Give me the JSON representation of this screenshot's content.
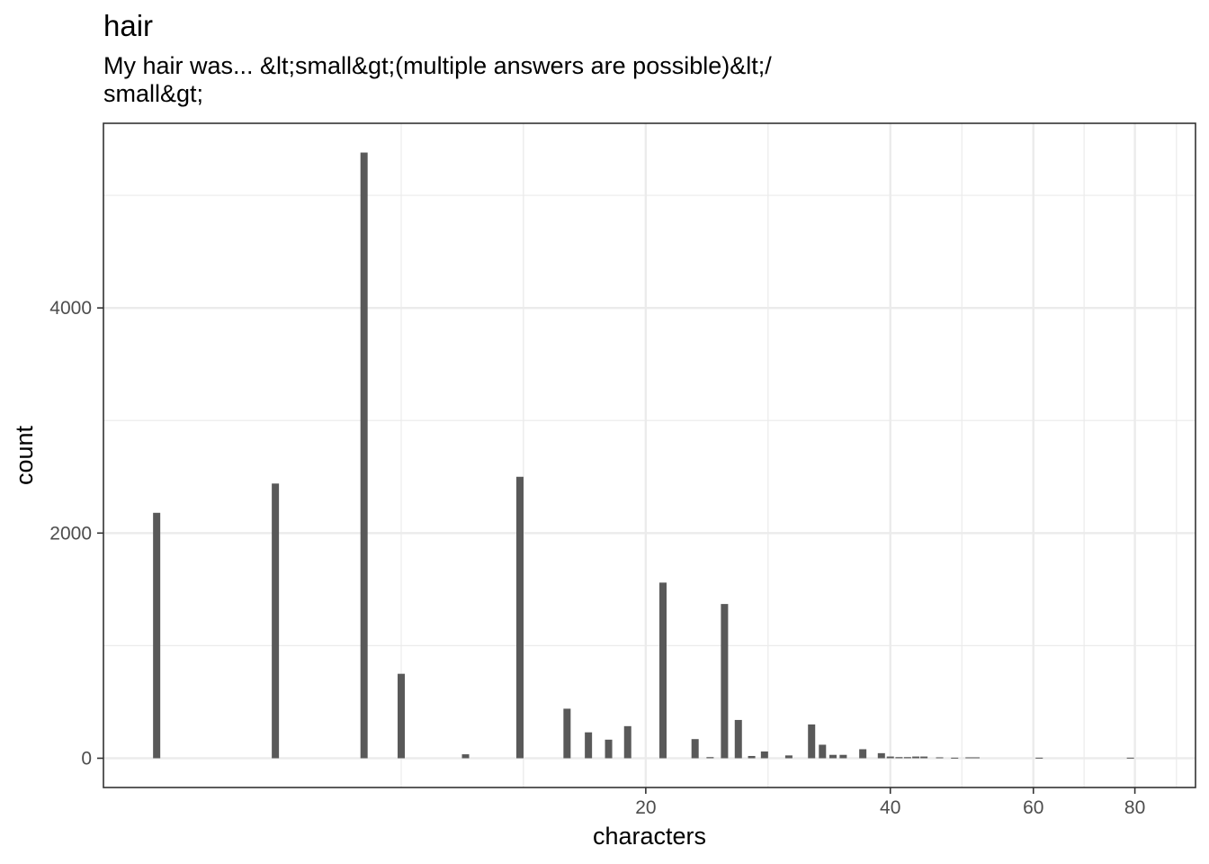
{
  "chart_data": {
    "type": "bar",
    "title": "hair",
    "subtitle": "My hair was... &lt;small&gt;(multiple answers are possible)&lt;/ small&gt;",
    "subtitle_lines": [
      "My hair was... &lt;small&gt;(multiple answers are possible)&lt;/",
      "small&gt;"
    ],
    "xlabel": "characters",
    "ylabel": "count",
    "x_scale": "log10",
    "xlim": [
      4.3,
      95
    ],
    "ylim": [
      -260,
      5640
    ],
    "x_ticks": [
      20,
      40,
      60,
      80
    ],
    "y_ticks": [
      0,
      2000,
      4000
    ],
    "grid": true,
    "bar_color": "#595959",
    "x": [
      5,
      7,
      9,
      10,
      12,
      14,
      16,
      17,
      18,
      19,
      21,
      23,
      24,
      25,
      26,
      27,
      28,
      30,
      32,
      33,
      34,
      35,
      37,
      39,
      40,
      41,
      42,
      43,
      44,
      46,
      48,
      50,
      51,
      61,
      79
    ],
    "values": [
      2180,
      2440,
      5380,
      750,
      35,
      2500,
      440,
      230,
      165,
      285,
      1560,
      170,
      10,
      1370,
      340,
      20,
      60,
      25,
      300,
      120,
      30,
      30,
      80,
      45,
      15,
      10,
      10,
      15,
      15,
      8,
      5,
      8,
      8,
      5,
      5
    ]
  }
}
